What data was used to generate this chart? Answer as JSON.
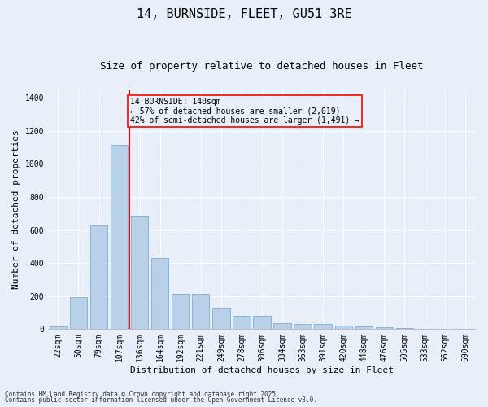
{
  "title1": "14, BURNSIDE, FLEET, GU51 3RE",
  "title2": "Size of property relative to detached houses in Fleet",
  "xlabel": "Distribution of detached houses by size in Fleet",
  "ylabel": "Number of detached properties",
  "categories": [
    "22sqm",
    "50sqm",
    "79sqm",
    "107sqm",
    "136sqm",
    "164sqm",
    "192sqm",
    "221sqm",
    "249sqm",
    "278sqm",
    "306sqm",
    "334sqm",
    "363sqm",
    "391sqm",
    "420sqm",
    "448sqm",
    "476sqm",
    "505sqm",
    "533sqm",
    "562sqm",
    "590sqm"
  ],
  "values": [
    15,
    195,
    625,
    1115,
    685,
    430,
    215,
    215,
    130,
    80,
    80,
    35,
    30,
    30,
    20,
    15,
    10,
    5,
    2,
    2,
    2
  ],
  "bar_color": "#b8d0e8",
  "bar_edge_color": "#7aafd4",
  "background_color": "#e8eff8",
  "grid_color": "#ffffff",
  "ylim": [
    0,
    1450
  ],
  "yticks": [
    0,
    200,
    400,
    600,
    800,
    1000,
    1200,
    1400
  ],
  "redline_x": 3.5,
  "annotation_box_text": "14 BURNSIDE: 140sqm\n← 57% of detached houses are smaller (2,019)\n42% of semi-detached houses are larger (1,491) →",
  "footer1": "Contains HM Land Registry data © Crown copyright and database right 2025.",
  "footer2": "Contains public sector information licensed under the Open Government Licence v3.0."
}
